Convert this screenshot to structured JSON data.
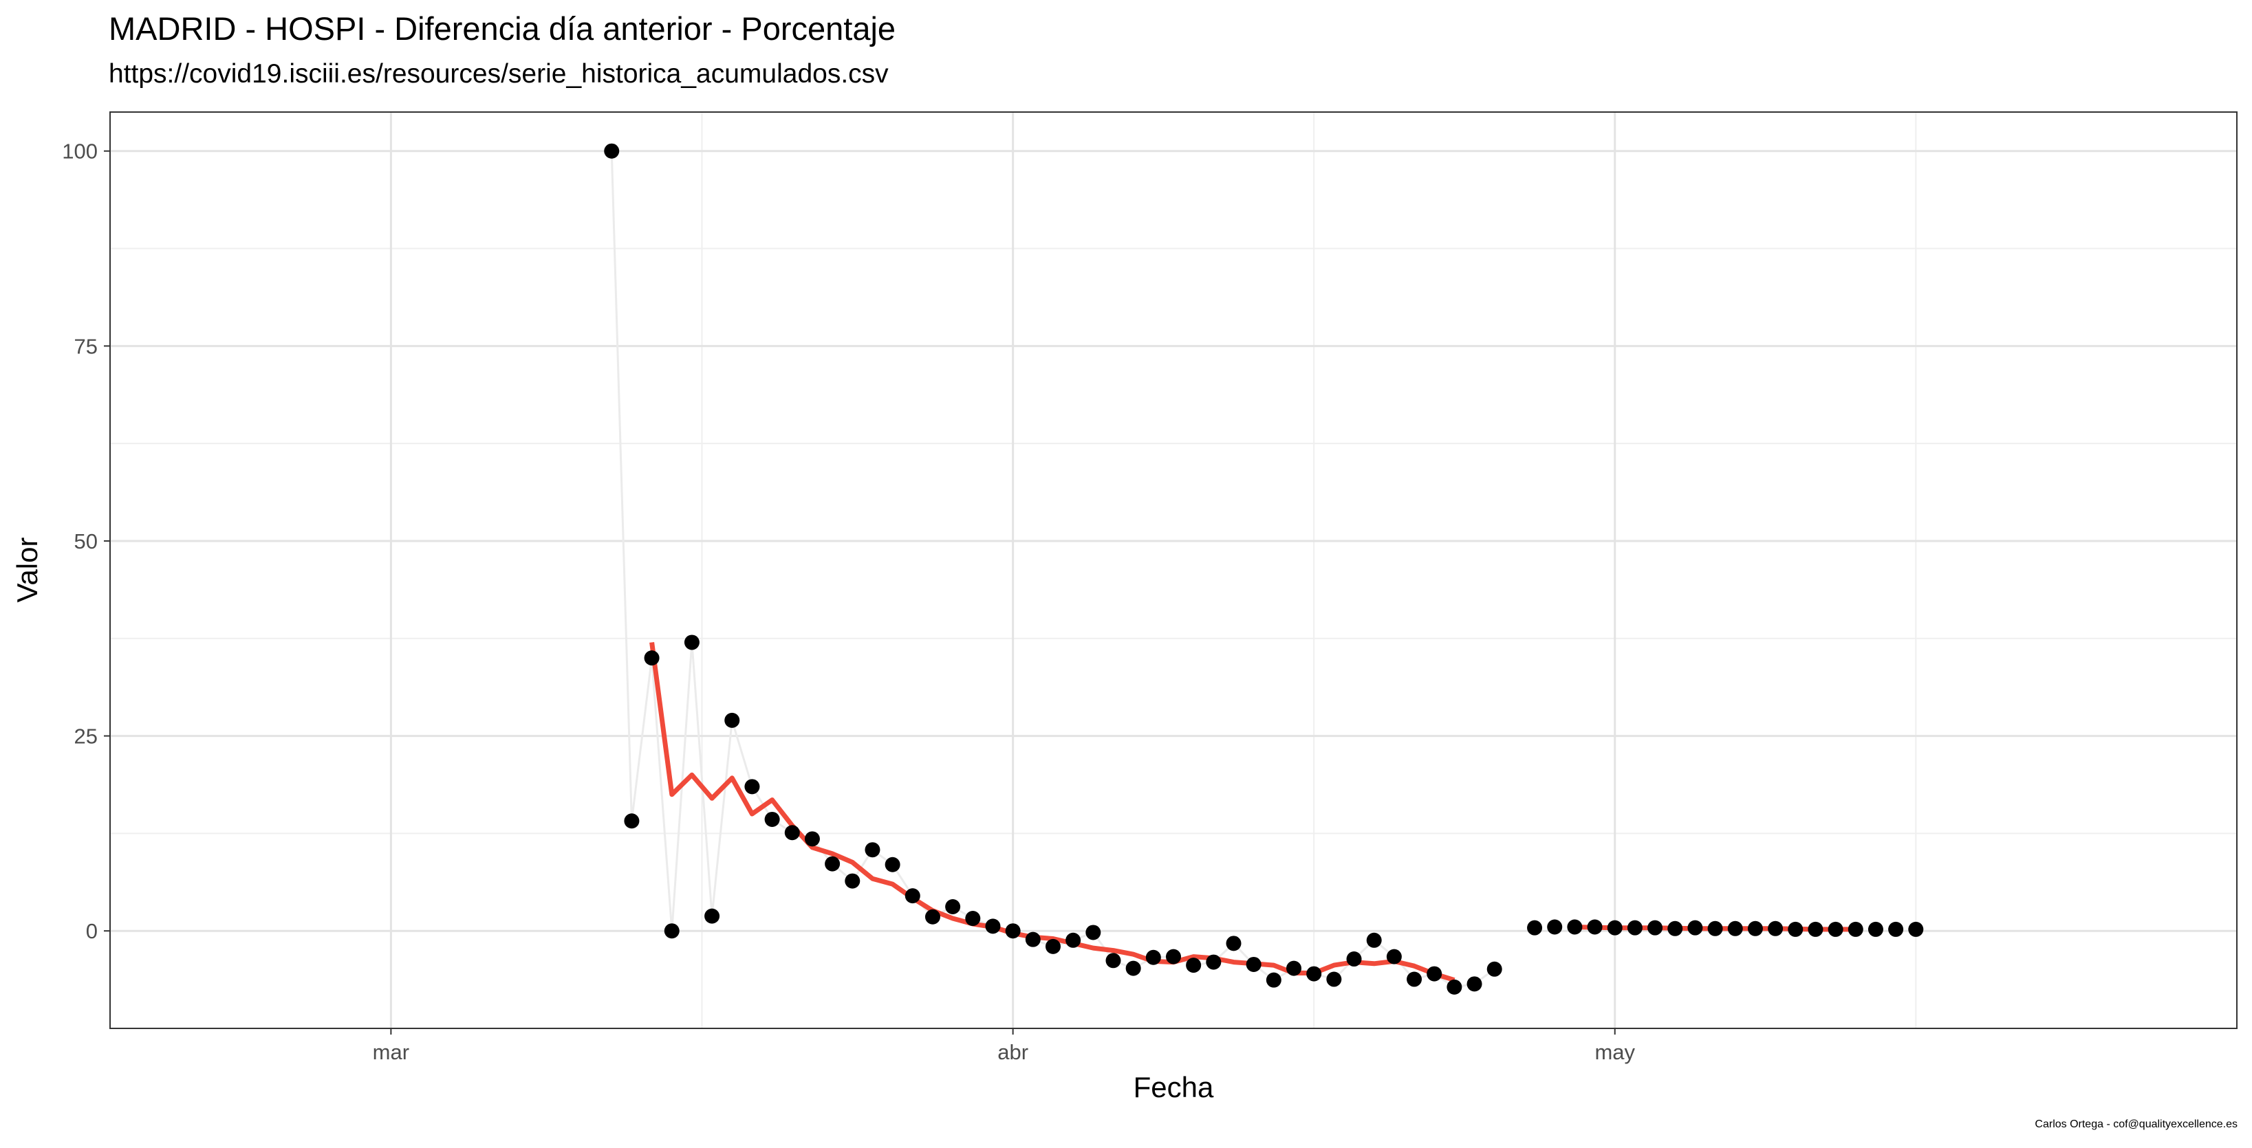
{
  "title": "MADRID - HOSPI - Diferencia día anterior - Porcentaje",
  "subtitle": "https://covid19.isciii.es/resources/serie_historica_acumulados.csv",
  "caption": "Carlos Ortega - cof@qualityexcellence.es",
  "colors": {
    "points": "#000000",
    "connector_line": "#ebebeb",
    "smooth_line": "#f04a3a",
    "major_grid": "#e3e3e3",
    "minor_grid": "#efefef",
    "panel_border": "#333333"
  },
  "chart_data": {
    "type": "scatter",
    "xlabel": "Fecha",
    "ylabel": "Valor",
    "x_ticks": [
      {
        "date": "2020-03-01",
        "label": "mar"
      },
      {
        "date": "2020-04-01",
        "label": "abr"
      },
      {
        "date": "2020-05-01",
        "label": "may"
      }
    ],
    "y_ticks": [
      0,
      25,
      50,
      75,
      100
    ],
    "ylim": [
      -12.5,
      105
    ],
    "xlim": [
      "2020-02-16",
      "2020-06-01"
    ],
    "grid": true,
    "series": [
      {
        "kind": "points_with_connector",
        "points": [
          [
            "2020-03-12",
            100.0
          ],
          [
            "2020-03-13",
            14.1
          ],
          [
            "2020-03-14",
            35.0
          ],
          [
            "2020-03-15",
            0.0
          ],
          [
            "2020-03-16",
            37.0
          ],
          [
            "2020-03-17",
            1.9
          ],
          [
            "2020-03-18",
            27.0
          ],
          [
            "2020-03-19",
            18.5
          ],
          [
            "2020-03-20",
            14.3
          ],
          [
            "2020-03-21",
            12.6
          ],
          [
            "2020-03-22",
            11.8
          ],
          [
            "2020-03-23",
            8.6
          ],
          [
            "2020-03-24",
            6.4
          ],
          [
            "2020-03-25",
            10.4
          ],
          [
            "2020-03-26",
            8.5
          ],
          [
            "2020-03-27",
            4.5
          ],
          [
            "2020-03-28",
            1.8
          ],
          [
            "2020-03-29",
            3.1
          ],
          [
            "2020-03-30",
            1.6
          ],
          [
            "2020-03-31",
            0.6
          ],
          [
            "2020-04-01",
            0.0
          ],
          [
            "2020-04-02",
            -1.1
          ],
          [
            "2020-04-03",
            -2.0
          ],
          [
            "2020-04-04",
            -1.2
          ],
          [
            "2020-04-05",
            -0.2
          ],
          [
            "2020-04-06",
            -3.8
          ],
          [
            "2020-04-07",
            -4.8
          ],
          [
            "2020-04-08",
            -3.4
          ],
          [
            "2020-04-09",
            -3.3
          ],
          [
            "2020-04-10",
            -4.4
          ],
          [
            "2020-04-11",
            -4.0
          ],
          [
            "2020-04-12",
            -1.6
          ],
          [
            "2020-04-13",
            -4.3
          ],
          [
            "2020-04-14",
            -6.3
          ],
          [
            "2020-04-15",
            -4.8
          ],
          [
            "2020-04-16",
            -5.5
          ],
          [
            "2020-04-17",
            -6.2
          ],
          [
            "2020-04-18",
            -3.6
          ],
          [
            "2020-04-19",
            -1.2
          ],
          [
            "2020-04-20",
            -3.3
          ],
          [
            "2020-04-21",
            -6.2
          ],
          [
            "2020-04-22",
            -5.5
          ],
          [
            "2020-04-23",
            -7.2
          ],
          [
            "2020-04-24",
            -6.8
          ],
          [
            "2020-04-25",
            -4.9
          ]
        ]
      },
      {
        "kind": "points",
        "points": [
          [
            "2020-04-27",
            0.4
          ],
          [
            "2020-04-28",
            0.5
          ],
          [
            "2020-04-29",
            0.5
          ],
          [
            "2020-04-30",
            0.5
          ],
          [
            "2020-05-01",
            0.4
          ],
          [
            "2020-05-02",
            0.4
          ],
          [
            "2020-05-03",
            0.4
          ],
          [
            "2020-05-04",
            0.3
          ],
          [
            "2020-05-05",
            0.4
          ],
          [
            "2020-05-06",
            0.3
          ],
          [
            "2020-05-07",
            0.3
          ],
          [
            "2020-05-08",
            0.3
          ],
          [
            "2020-05-09",
            0.3
          ],
          [
            "2020-05-10",
            0.2
          ],
          [
            "2020-05-11",
            0.2
          ],
          [
            "2020-05-12",
            0.2
          ],
          [
            "2020-05-13",
            0.2
          ],
          [
            "2020-05-14",
            0.2
          ],
          [
            "2020-05-15",
            0.2
          ],
          [
            "2020-05-16",
            0.2
          ]
        ]
      },
      {
        "kind": "smooth_line",
        "points": [
          [
            "2020-03-14",
            37.0
          ],
          [
            "2020-03-15",
            17.5
          ],
          [
            "2020-03-16",
            20.0
          ],
          [
            "2020-03-17",
            17.0
          ],
          [
            "2020-03-18",
            19.6
          ],
          [
            "2020-03-19",
            15.0
          ],
          [
            "2020-03-20",
            16.8
          ],
          [
            "2020-03-21",
            13.5
          ],
          [
            "2020-03-22",
            10.7
          ],
          [
            "2020-03-23",
            9.9
          ],
          [
            "2020-03-24",
            8.8
          ],
          [
            "2020-03-25",
            6.7
          ],
          [
            "2020-03-26",
            6.0
          ],
          [
            "2020-03-27",
            4.2
          ],
          [
            "2020-03-28",
            2.6
          ],
          [
            "2020-03-29",
            1.6
          ],
          [
            "2020-03-30",
            0.9
          ],
          [
            "2020-03-31",
            0.5
          ],
          [
            "2020-04-01",
            -0.3
          ],
          [
            "2020-04-02",
            -0.8
          ],
          [
            "2020-04-03",
            -1.0
          ],
          [
            "2020-04-04",
            -1.6
          ],
          [
            "2020-04-05",
            -2.2
          ],
          [
            "2020-04-06",
            -2.5
          ],
          [
            "2020-04-07",
            -3.0
          ],
          [
            "2020-04-08",
            -3.9
          ],
          [
            "2020-04-09",
            -4.0
          ],
          [
            "2020-04-10",
            -3.3
          ],
          [
            "2020-04-11",
            -3.5
          ],
          [
            "2020-04-12",
            -4.0
          ],
          [
            "2020-04-13",
            -4.2
          ],
          [
            "2020-04-14",
            -4.4
          ],
          [
            "2020-04-15",
            -5.4
          ],
          [
            "2020-04-16",
            -5.4
          ],
          [
            "2020-04-17",
            -4.4
          ],
          [
            "2020-04-18",
            -4.0
          ],
          [
            "2020-04-19",
            -4.2
          ],
          [
            "2020-04-20",
            -3.9
          ],
          [
            "2020-04-21",
            -4.5
          ],
          [
            "2020-04-22",
            -5.5
          ],
          [
            "2020-04-23",
            -6.3
          ]
        ]
      },
      {
        "kind": "smooth_line",
        "points": [
          [
            "2020-04-29",
            0.5
          ],
          [
            "2020-05-01",
            0.4
          ],
          [
            "2020-05-03",
            0.4
          ],
          [
            "2020-05-05",
            0.3
          ],
          [
            "2020-05-07",
            0.3
          ],
          [
            "2020-05-09",
            0.3
          ],
          [
            "2020-05-11",
            0.2
          ],
          [
            "2020-05-13",
            0.2
          ]
        ]
      }
    ]
  }
}
